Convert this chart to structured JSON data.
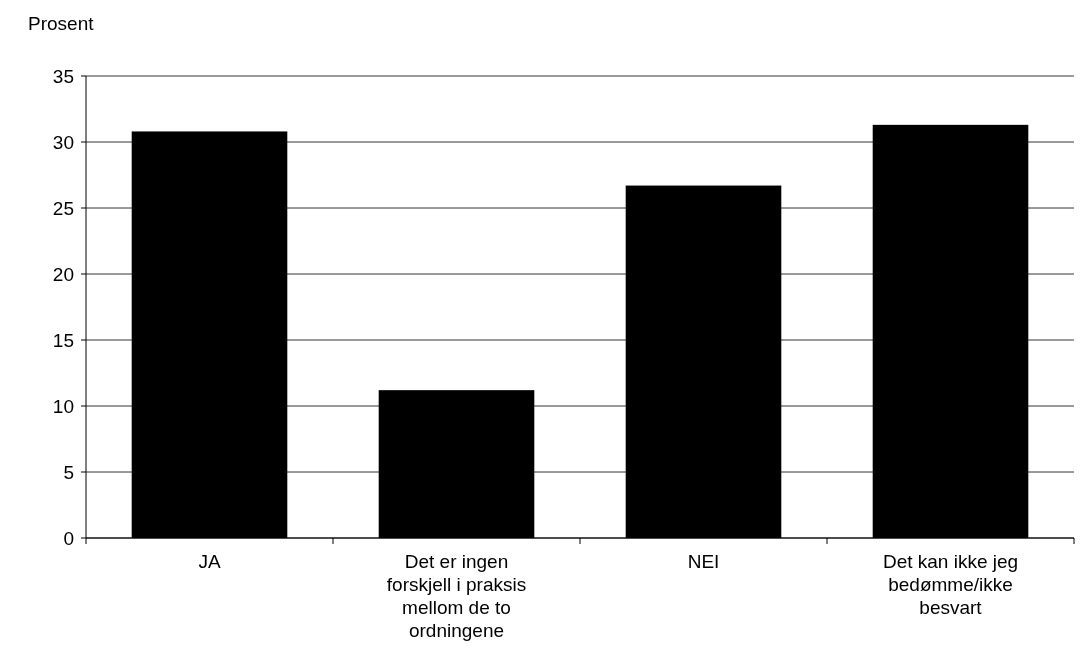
{
  "chart_data": {
    "type": "bar",
    "ylabel": "Prosent",
    "categories": [
      "JA",
      "Det er ingen forskjell i praksis mellom de to ordningene",
      "NEI",
      "Det kan ikke jeg bedømme/ikke besvart"
    ],
    "values": [
      30.8,
      11.2,
      26.7,
      31.3
    ],
    "color": "#000000",
    "ylim": [
      0,
      35
    ],
    "yticks": [
      0,
      5,
      10,
      15,
      20,
      25,
      30,
      35
    ],
    "grid": "y"
  }
}
